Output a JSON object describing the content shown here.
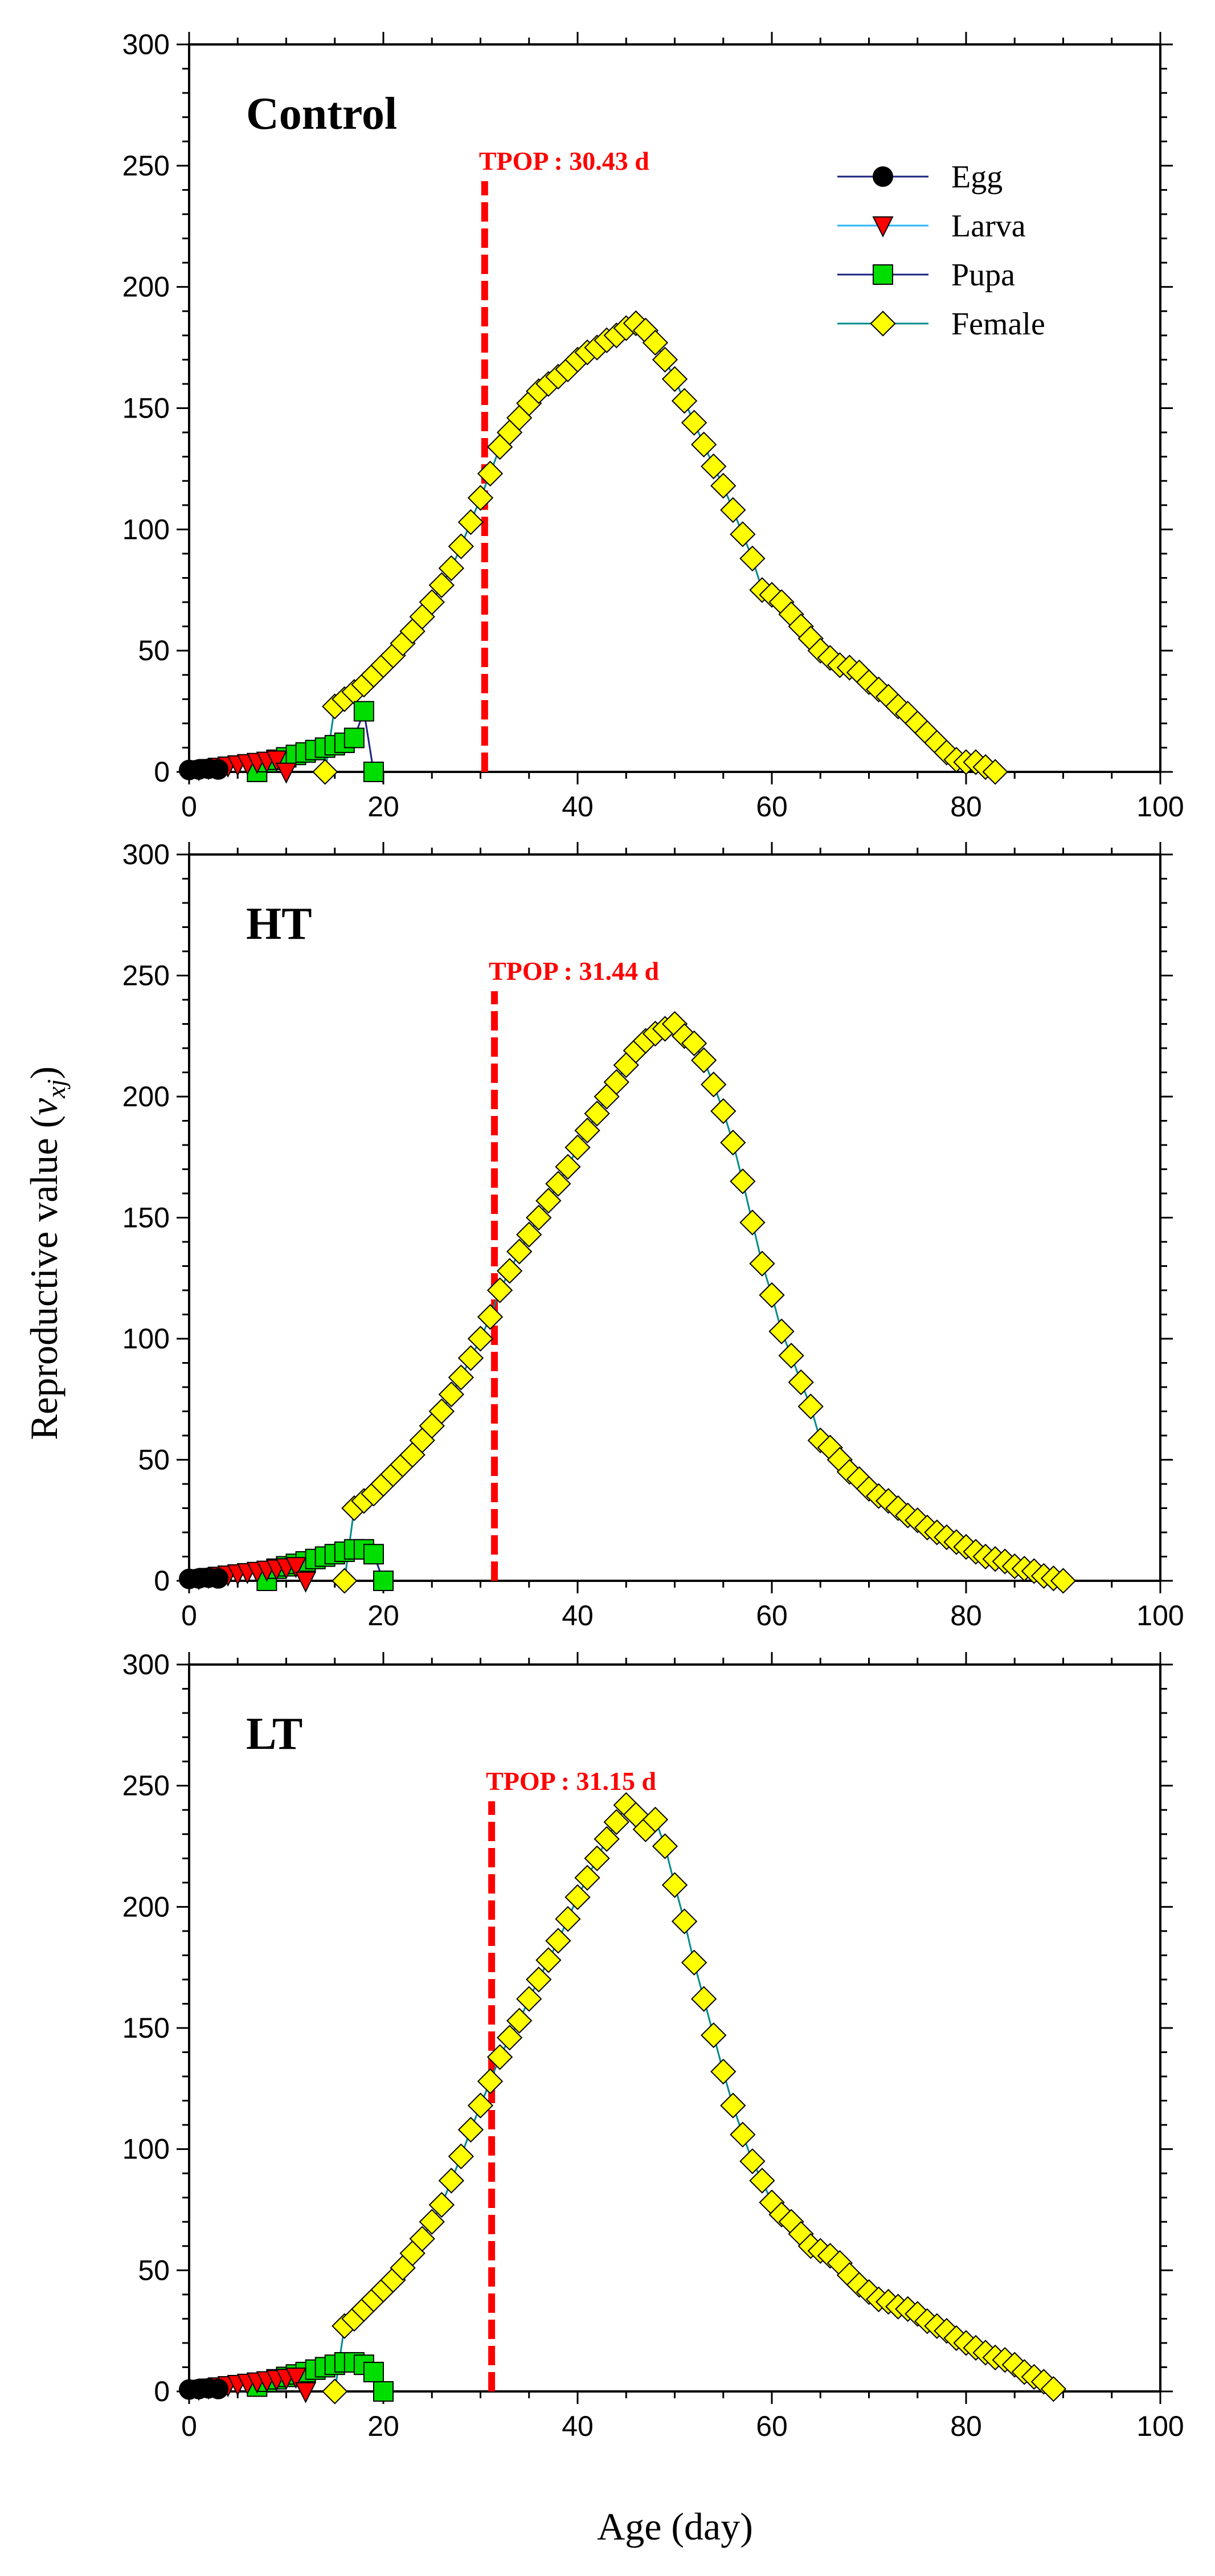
{
  "chart_data": {
    "type": "line",
    "ylabel_prefix": "Reproductive value (",
    "ylabel_var": "v",
    "ylabel_sub": "xj",
    "ylabel_suffix": ")",
    "xlabel": "Age (day)",
    "xlim": [
      0,
      100
    ],
    "ylim": [
      0,
      300
    ],
    "xticks": [
      0,
      20,
      40,
      60,
      80,
      100
    ],
    "yticks": [
      0,
      50,
      100,
      150,
      200,
      250,
      300
    ],
    "legend": {
      "position": "top-right of first panel",
      "entries": [
        "Egg",
        "Larva",
        "Pupa",
        "Female"
      ]
    },
    "series_styles": {
      "Egg": {
        "marker": "circle",
        "fill": "#000000",
        "line": "#1a237e"
      },
      "Larva": {
        "marker": "triangle-down",
        "fill": "#ff0000",
        "line": "#29b6f6"
      },
      "Pupa": {
        "marker": "square",
        "fill": "#00dd00",
        "line": "#1a237e"
      },
      "Female": {
        "marker": "diamond",
        "fill": "#ffff00",
        "line": "#008b8b"
      }
    },
    "tpop_color": "#ff0000",
    "panels": [
      {
        "title": "Control",
        "tpop_label": "TPOP : 30.43 d",
        "tpop": 30.43,
        "series": [
          {
            "name": "Egg",
            "x": [
              0,
              1,
              2,
              3
            ],
            "y": [
              0.8,
              1.0,
              1.3,
              1.0
            ]
          },
          {
            "name": "Larva",
            "x": [
              1,
              2,
              3,
              4,
              5,
              6,
              7,
              8,
              9,
              10
            ],
            "y": [
              1,
              1.5,
              2,
              2.5,
              3,
              3.5,
              4,
              4.5,
              5,
              0
            ]
          },
          {
            "name": "Pupa",
            "x": [
              7,
              8,
              9,
              10,
              11,
              12,
              13,
              14,
              15,
              16,
              17,
              18,
              19
            ],
            "y": [
              0,
              4,
              5,
              6,
              7,
              8,
              9,
              10,
              11,
              12,
              14,
              25,
              0
            ]
          },
          {
            "name": "Female",
            "x": [
              14,
              15,
              16,
              17,
              18,
              19,
              20,
              21,
              22,
              23,
              24,
              25,
              26,
              27,
              28,
              29,
              30,
              31,
              32,
              33,
              34,
              35,
              36,
              37,
              38,
              39,
              40,
              41,
              42,
              43,
              44,
              45,
              46,
              47,
              48,
              49,
              50,
              51,
              52,
              53,
              54,
              55,
              56,
              57,
              58,
              59,
              60,
              61,
              62,
              63,
              64,
              65,
              66,
              67,
              68,
              69,
              70,
              71,
              72,
              73,
              74,
              75,
              76,
              77,
              78,
              79,
              80,
              81,
              82,
              83
            ],
            "y": [
              0,
              27,
              30,
              33,
              36,
              40,
              44,
              48,
              53,
              58,
              64,
              70,
              77,
              84,
              93,
              103,
              113,
              123,
              134,
              140,
              146,
              152,
              157,
              160,
              163,
              166,
              170,
              173,
              175,
              178,
              180,
              183,
              185,
              182,
              177,
              170,
              162,
              153,
              144,
              135,
              126,
              118,
              108,
              98,
              88,
              75,
              73,
              70,
              65,
              60,
              55,
              50,
              47,
              44,
              43,
              41,
              37,
              34,
              31,
              27,
              24,
              20,
              16,
              12,
              8,
              5,
              4,
              4,
              2,
              0
            ]
          }
        ]
      },
      {
        "title": "HT",
        "tpop_label": "TPOP : 31.44 d",
        "tpop": 31.44,
        "series": [
          {
            "name": "Egg",
            "x": [
              0,
              1,
              2,
              3
            ],
            "y": [
              0.8,
              1.0,
              1.3,
              1.0
            ]
          },
          {
            "name": "Larva",
            "x": [
              1,
              2,
              3,
              4,
              5,
              6,
              7,
              8,
              9,
              10,
              11,
              12
            ],
            "y": [
              1,
              1.5,
              2,
              2.5,
              3,
              3.5,
              4,
              4.5,
              5,
              5.5,
              6,
              0
            ]
          },
          {
            "name": "Pupa",
            "x": [
              8,
              9,
              10,
              11,
              12,
              13,
              14,
              15,
              16,
              17,
              18,
              19,
              20
            ],
            "y": [
              0,
              5,
              6,
              7,
              8,
              9,
              10,
              11,
              12,
              13,
              13,
              11,
              0
            ]
          },
          {
            "name": "Female",
            "x": [
              16,
              17,
              18,
              19,
              20,
              21,
              22,
              23,
              24,
              25,
              26,
              27,
              28,
              29,
              30,
              31,
              32,
              33,
              34,
              35,
              36,
              37,
              38,
              39,
              40,
              41,
              42,
              43,
              44,
              45,
              46,
              47,
              48,
              49,
              50,
              51,
              52,
              53,
              54,
              55,
              56,
              57,
              58,
              59,
              60,
              61,
              62,
              63,
              64,
              65,
              66,
              67,
              68,
              69,
              70,
              71,
              72,
              73,
              74,
              75,
              76,
              77,
              78,
              79,
              80,
              81,
              82,
              83,
              84,
              85,
              86,
              87,
              88,
              89,
              90
            ],
            "y": [
              0,
              30,
              33,
              36,
              40,
              44,
              48,
              52,
              58,
              64,
              70,
              77,
              84,
              92,
              100,
              109,
              120,
              128,
              136,
              143,
              150,
              157,
              164,
              171,
              179,
              186,
              193,
              200,
              206,
              213,
              219,
              223,
              226,
              228,
              230,
              225,
              222,
              215,
              205,
              194,
              181,
              165,
              148,
              131,
              118,
              103,
              93,
              82,
              72,
              58,
              55,
              50,
              45,
              42,
              38,
              35,
              33,
              30,
              27,
              25,
              22,
              20,
              18,
              16,
              14,
              12,
              10,
              9,
              8,
              6,
              5,
              4,
              2,
              1,
              0
            ]
          }
        ]
      },
      {
        "title": "LT",
        "tpop_label": "TPOP : 31.15 d",
        "tpop": 31.15,
        "series": [
          {
            "name": "Egg",
            "x": [
              0,
              1,
              2,
              3
            ],
            "y": [
              0.8,
              1.0,
              1.3,
              1.0
            ]
          },
          {
            "name": "Larva",
            "x": [
              1,
              2,
              3,
              4,
              5,
              6,
              7,
              8,
              9,
              10,
              11,
              12
            ],
            "y": [
              1,
              1.5,
              2,
              2.5,
              3,
              3.5,
              4,
              4.5,
              5,
              5.5,
              6,
              0
            ]
          },
          {
            "name": "Pupa",
            "x": [
              7,
              8,
              9,
              10,
              11,
              12,
              13,
              14,
              15,
              16,
              17,
              18,
              19,
              20
            ],
            "y": [
              2,
              4,
              5,
              6,
              7,
              8,
              9,
              10,
              11,
              12,
              12,
              11,
              8,
              0
            ]
          },
          {
            "name": "Female",
            "x": [
              15,
              16,
              17,
              18,
              19,
              20,
              21,
              22,
              23,
              24,
              25,
              26,
              27,
              28,
              29,
              30,
              31,
              32,
              33,
              34,
              35,
              36,
              37,
              38,
              39,
              40,
              41,
              42,
              43,
              44,
              45,
              46,
              47,
              48,
              49,
              50,
              51,
              52,
              53,
              54,
              55,
              56,
              57,
              58,
              59,
              60,
              61,
              62,
              63,
              64,
              65,
              66,
              67,
              68,
              69,
              70,
              71,
              72,
              73,
              74,
              75,
              76,
              77,
              78,
              79,
              80,
              81,
              82,
              83,
              84,
              85,
              86,
              87,
              88,
              89
            ],
            "y": [
              0,
              27,
              30,
              34,
              38,
              42,
              46,
              51,
              57,
              63,
              70,
              77,
              87,
              97,
              108,
              118,
              128,
              138,
              146,
              153,
              162,
              170,
              178,
              186,
              195,
              204,
              212,
              220,
              228,
              235,
              242,
              238,
              232,
              236,
              225,
              209,
              194,
              177,
              162,
              147,
              132,
              118,
              106,
              95,
              87,
              78,
              73,
              70,
              65,
              60,
              58,
              56,
              53,
              48,
              44,
              41,
              38,
              37,
              35,
              34,
              32,
              29,
              27,
              25,
              22,
              20,
              18,
              16,
              14,
              13,
              11,
              8,
              6,
              4,
              1
            ]
          }
        ]
      }
    ]
  }
}
